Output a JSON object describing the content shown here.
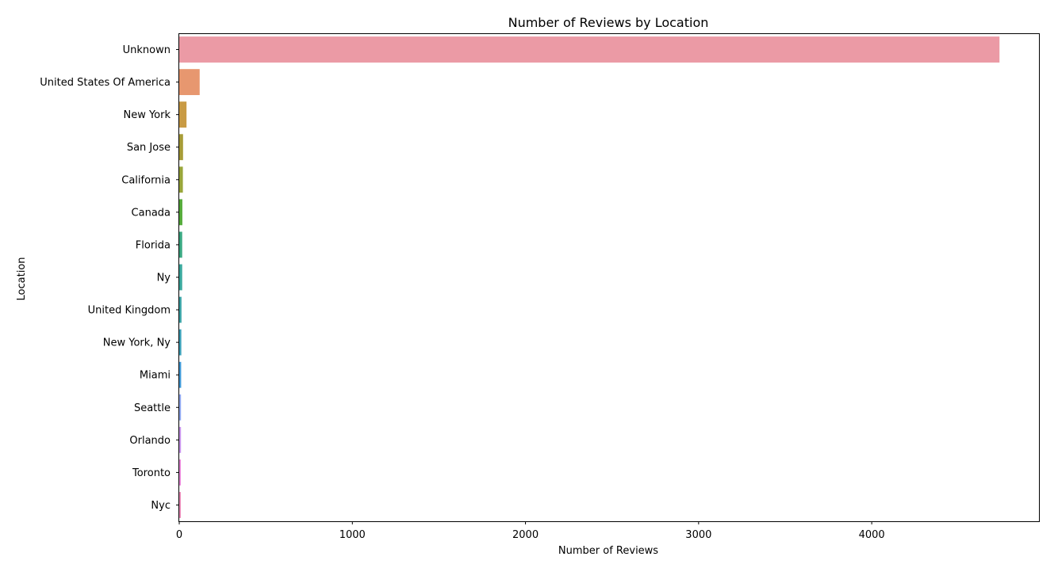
{
  "chart_data": {
    "type": "bar",
    "orientation": "horizontal",
    "title": "Number of Reviews by Location",
    "xlabel": "Number of Reviews",
    "ylabel": "Location",
    "xlim": [
      0,
      4966
    ],
    "xticks": [
      0,
      1000,
      2000,
      3000,
      4000
    ],
    "grid": false,
    "categories": [
      "Unknown",
      "United States Of America",
      "New York",
      "San Jose",
      "California",
      "Canada",
      "Florida",
      "Ny",
      "United Kingdom",
      "New York, Ny",
      "Miami",
      "Seattle",
      "Orlando",
      "Toronto",
      "Nyc"
    ],
    "values": [
      4738,
      118,
      42,
      22,
      21,
      18,
      17,
      17,
      13,
      12,
      11,
      10,
      10,
      9,
      9
    ],
    "colors": [
      "#eb9aa5",
      "#e7976f",
      "#c99b44",
      "#a79c37",
      "#99a63a",
      "#55ab3a",
      "#3aa882",
      "#3aa89d",
      "#3ba3a6",
      "#3ba0b8",
      "#4099d6",
      "#8ea6ed",
      "#c793ea",
      "#e785d8",
      "#e889b6"
    ]
  }
}
